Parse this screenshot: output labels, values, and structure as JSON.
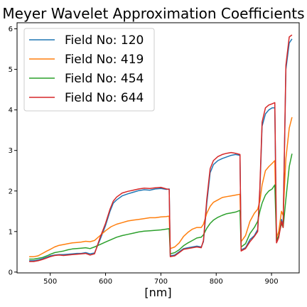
{
  "chart_data": {
    "type": "line",
    "title": "Meyer Wavelet Approximation Coefficients",
    "xlabel": "[nm]",
    "ylabel": "",
    "xlim": [
      440,
      950
    ],
    "ylim": [
      -0.02,
      6.15
    ],
    "xticks": [
      500,
      600,
      700,
      800,
      900
    ],
    "yticks": [
      0,
      1,
      2,
      3,
      4,
      5,
      6
    ],
    "grid": false,
    "legend_position": "top-left",
    "series": [
      {
        "name": "Field No: 120",
        "color": "#1f77b4",
        "points": [
          [
            462,
            0.28
          ],
          [
            470,
            0.28
          ],
          [
            478,
            0.3
          ],
          [
            486,
            0.33
          ],
          [
            494,
            0.37
          ],
          [
            500,
            0.4
          ],
          [
            508,
            0.42
          ],
          [
            516,
            0.43
          ],
          [
            524,
            0.43
          ],
          [
            532,
            0.44
          ],
          [
            540,
            0.45
          ],
          [
            548,
            0.46
          ],
          [
            556,
            0.46
          ],
          [
            564,
            0.48
          ],
          [
            572,
            0.45
          ],
          [
            580,
            0.47
          ],
          [
            590,
            0.8
          ],
          [
            600,
            1.15
          ],
          [
            608,
            1.5
          ],
          [
            614,
            1.7
          ],
          [
            620,
            1.78
          ],
          [
            630,
            1.88
          ],
          [
            640,
            1.93
          ],
          [
            650,
            1.97
          ],
          [
            660,
            2.01
          ],
          [
            670,
            2.03
          ],
          [
            680,
            2.02
          ],
          [
            690,
            2.05
          ],
          [
            700,
            2.06
          ],
          [
            710,
            2.04
          ],
          [
            715,
            2.05
          ],
          [
            717,
            0.4
          ],
          [
            725,
            0.42
          ],
          [
            733,
            0.5
          ],
          [
            741,
            0.58
          ],
          [
            749,
            0.6
          ],
          [
            757,
            0.62
          ],
          [
            765,
            0.64
          ],
          [
            773,
            0.62
          ],
          [
            777,
            0.75
          ],
          [
            783,
            1.7
          ],
          [
            789,
            2.45
          ],
          [
            795,
            2.65
          ],
          [
            803,
            2.75
          ],
          [
            811,
            2.8
          ],
          [
            819,
            2.84
          ],
          [
            827,
            2.88
          ],
          [
            835,
            2.9
          ],
          [
            843,
            2.88
          ],
          [
            845,
            0.55
          ],
          [
            853,
            0.6
          ],
          [
            861,
            0.8
          ],
          [
            869,
            0.9
          ],
          [
            875,
            1.05
          ],
          [
            879,
            2.0
          ],
          [
            883,
            3.6
          ],
          [
            889,
            3.9
          ],
          [
            895,
            4.0
          ],
          [
            901,
            4.05
          ],
          [
            906,
            4.05
          ],
          [
            909,
            0.75
          ],
          [
            913,
            0.9
          ],
          [
            918,
            1.3
          ],
          [
            921,
            1.15
          ],
          [
            926,
            5.0
          ],
          [
            932,
            5.65
          ],
          [
            937,
            5.75
          ]
        ]
      },
      {
        "name": "Field No: 419",
        "color": "#ff7f0e",
        "points": [
          [
            462,
            0.38
          ],
          [
            470,
            0.38
          ],
          [
            478,
            0.4
          ],
          [
            486,
            0.46
          ],
          [
            494,
            0.52
          ],
          [
            500,
            0.56
          ],
          [
            508,
            0.62
          ],
          [
            516,
            0.66
          ],
          [
            524,
            0.68
          ],
          [
            532,
            0.7
          ],
          [
            540,
            0.72
          ],
          [
            548,
            0.73
          ],
          [
            556,
            0.74
          ],
          [
            564,
            0.76
          ],
          [
            572,
            0.75
          ],
          [
            580,
            0.78
          ],
          [
            590,
            0.9
          ],
          [
            600,
            1.02
          ],
          [
            610,
            1.12
          ],
          [
            620,
            1.18
          ],
          [
            630,
            1.22
          ],
          [
            640,
            1.26
          ],
          [
            650,
            1.28
          ],
          [
            660,
            1.3
          ],
          [
            670,
            1.32
          ],
          [
            680,
            1.34
          ],
          [
            690,
            1.34
          ],
          [
            700,
            1.36
          ],
          [
            710,
            1.37
          ],
          [
            715,
            1.38
          ],
          [
            717,
            0.58
          ],
          [
            725,
            0.62
          ],
          [
            733,
            0.72
          ],
          [
            741,
            0.88
          ],
          [
            749,
            0.98
          ],
          [
            757,
            1.06
          ],
          [
            765,
            1.1
          ],
          [
            773,
            1.1
          ],
          [
            777,
            1.18
          ],
          [
            783,
            1.45
          ],
          [
            789,
            1.62
          ],
          [
            795,
            1.72
          ],
          [
            803,
            1.78
          ],
          [
            811,
            1.84
          ],
          [
            819,
            1.86
          ],
          [
            827,
            1.88
          ],
          [
            835,
            1.9
          ],
          [
            843,
            1.92
          ],
          [
            845,
            0.75
          ],
          [
            853,
            0.9
          ],
          [
            861,
            1.25
          ],
          [
            869,
            1.45
          ],
          [
            875,
            1.55
          ],
          [
            879,
            1.75
          ],
          [
            883,
            2.15
          ],
          [
            889,
            2.5
          ],
          [
            895,
            2.6
          ],
          [
            901,
            2.68
          ],
          [
            906,
            2.75
          ],
          [
            909,
            0.85
          ],
          [
            913,
            1.0
          ],
          [
            918,
            1.5
          ],
          [
            921,
            1.4
          ],
          [
            926,
            2.8
          ],
          [
            932,
            3.55
          ],
          [
            937,
            3.82
          ]
        ]
      },
      {
        "name": "Field No: 454",
        "color": "#2ca02c",
        "points": [
          [
            462,
            0.32
          ],
          [
            470,
            0.32
          ],
          [
            478,
            0.34
          ],
          [
            486,
            0.36
          ],
          [
            494,
            0.4
          ],
          [
            500,
            0.44
          ],
          [
            508,
            0.48
          ],
          [
            516,
            0.5
          ],
          [
            524,
            0.52
          ],
          [
            532,
            0.55
          ],
          [
            540,
            0.57
          ],
          [
            548,
            0.58
          ],
          [
            556,
            0.59
          ],
          [
            564,
            0.6
          ],
          [
            572,
            0.58
          ],
          [
            580,
            0.62
          ],
          [
            590,
            0.68
          ],
          [
            600,
            0.74
          ],
          [
            610,
            0.8
          ],
          [
            620,
            0.86
          ],
          [
            630,
            0.9
          ],
          [
            640,
            0.93
          ],
          [
            650,
            0.96
          ],
          [
            660,
            0.99
          ],
          [
            670,
            1.01
          ],
          [
            680,
            1.02
          ],
          [
            690,
            1.03
          ],
          [
            700,
            1.04
          ],
          [
            710,
            1.06
          ],
          [
            715,
            1.07
          ],
          [
            717,
            0.45
          ],
          [
            725,
            0.48
          ],
          [
            733,
            0.55
          ],
          [
            741,
            0.65
          ],
          [
            749,
            0.72
          ],
          [
            757,
            0.78
          ],
          [
            765,
            0.84
          ],
          [
            773,
            0.86
          ],
          [
            777,
            0.92
          ],
          [
            783,
            1.08
          ],
          [
            789,
            1.2
          ],
          [
            795,
            1.28
          ],
          [
            803,
            1.35
          ],
          [
            811,
            1.4
          ],
          [
            819,
            1.44
          ],
          [
            827,
            1.46
          ],
          [
            835,
            1.48
          ],
          [
            843,
            1.52
          ],
          [
            845,
            0.62
          ],
          [
            853,
            0.7
          ],
          [
            861,
            0.95
          ],
          [
            869,
            1.1
          ],
          [
            875,
            1.25
          ],
          [
            879,
            1.5
          ],
          [
            883,
            1.7
          ],
          [
            889,
            1.9
          ],
          [
            895,
            2.0
          ],
          [
            901,
            2.05
          ],
          [
            906,
            2.15
          ],
          [
            909,
            0.78
          ],
          [
            913,
            0.9
          ],
          [
            918,
            1.2
          ],
          [
            921,
            1.1
          ],
          [
            926,
            1.8
          ],
          [
            932,
            2.6
          ],
          [
            937,
            2.92
          ]
        ]
      },
      {
        "name": "Field No: 644",
        "color": "#d62728",
        "points": [
          [
            462,
            0.26
          ],
          [
            470,
            0.26
          ],
          [
            478,
            0.28
          ],
          [
            486,
            0.31
          ],
          [
            494,
            0.35
          ],
          [
            500,
            0.38
          ],
          [
            508,
            0.41
          ],
          [
            516,
            0.42
          ],
          [
            524,
            0.41
          ],
          [
            532,
            0.42
          ],
          [
            540,
            0.43
          ],
          [
            548,
            0.44
          ],
          [
            556,
            0.45
          ],
          [
            564,
            0.46
          ],
          [
            572,
            0.42
          ],
          [
            580,
            0.45
          ],
          [
            590,
            0.85
          ],
          [
            600,
            1.2
          ],
          [
            608,
            1.55
          ],
          [
            614,
            1.75
          ],
          [
            620,
            1.85
          ],
          [
            630,
            1.95
          ],
          [
            640,
            1.99
          ],
          [
            650,
            2.02
          ],
          [
            660,
            2.05
          ],
          [
            670,
            2.07
          ],
          [
            680,
            2.06
          ],
          [
            690,
            2.08
          ],
          [
            700,
            2.09
          ],
          [
            710,
            2.05
          ],
          [
            715,
            2.04
          ],
          [
            717,
            0.38
          ],
          [
            725,
            0.4
          ],
          [
            733,
            0.48
          ],
          [
            741,
            0.56
          ],
          [
            749,
            0.58
          ],
          [
            757,
            0.6
          ],
          [
            765,
            0.62
          ],
          [
            773,
            0.6
          ],
          [
            777,
            0.78
          ],
          [
            783,
            1.8
          ],
          [
            789,
            2.55
          ],
          [
            795,
            2.75
          ],
          [
            803,
            2.85
          ],
          [
            811,
            2.9
          ],
          [
            819,
            2.93
          ],
          [
            827,
            2.95
          ],
          [
            835,
            2.93
          ],
          [
            843,
            2.9
          ],
          [
            845,
            0.52
          ],
          [
            853,
            0.58
          ],
          [
            861,
            0.75
          ],
          [
            869,
            0.88
          ],
          [
            875,
            1.0
          ],
          [
            879,
            2.1
          ],
          [
            883,
            3.7
          ],
          [
            889,
            4.05
          ],
          [
            895,
            4.12
          ],
          [
            901,
            4.15
          ],
          [
            906,
            4.18
          ],
          [
            909,
            0.72
          ],
          [
            913,
            0.85
          ],
          [
            918,
            1.25
          ],
          [
            921,
            1.1
          ],
          [
            926,
            5.1
          ],
          [
            932,
            5.8
          ],
          [
            937,
            5.85
          ]
        ]
      }
    ]
  }
}
